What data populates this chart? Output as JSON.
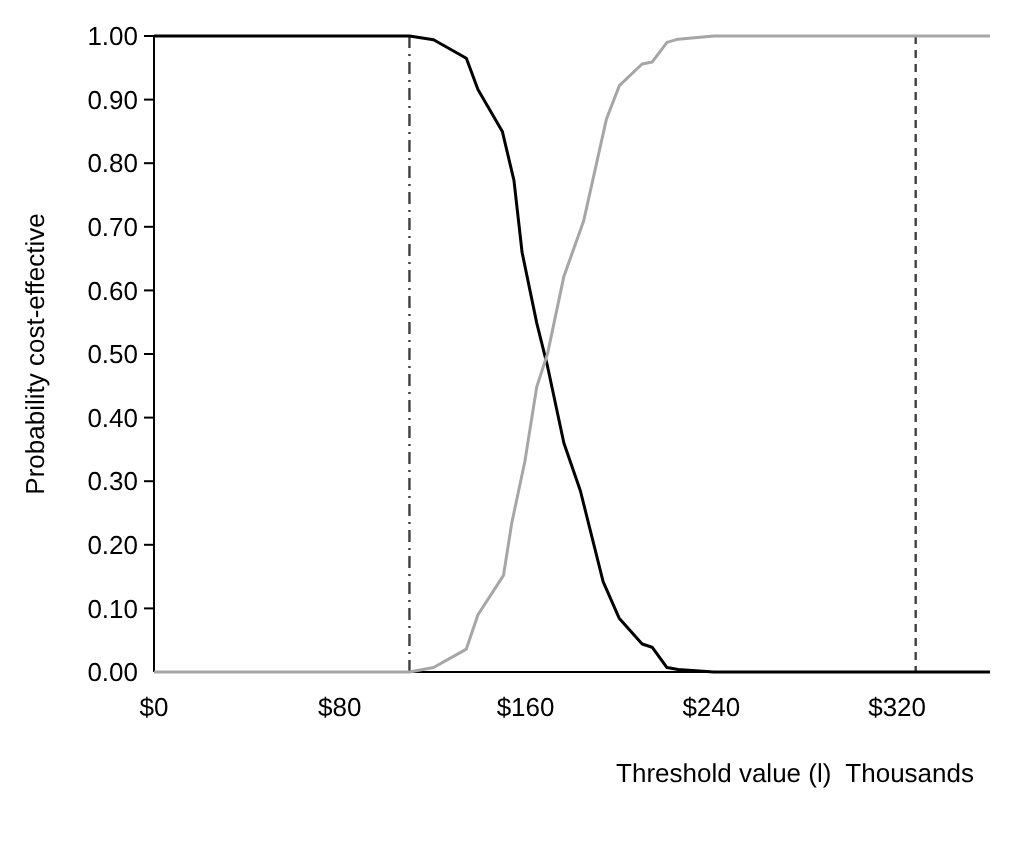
{
  "chart_data": {
    "type": "line",
    "xlabel": "Threshold value (l)  Thousands",
    "ylabel": "Probability cost-effective",
    "xlim": [
      0,
      360
    ],
    "xticks": [
      {
        "value": 0,
        "label": "$0"
      },
      {
        "value": 80,
        "label": "$80"
      },
      {
        "value": 160,
        "label": "$160"
      },
      {
        "value": 240,
        "label": "$240"
      },
      {
        "value": 320,
        "label": "$320"
      }
    ],
    "ylim": [
      0,
      1
    ],
    "yticks": [
      {
        "value": 0,
        "label": "0.00"
      },
      {
        "value": 0.1,
        "label": "0.10"
      },
      {
        "value": 0.2,
        "label": "0.20"
      },
      {
        "value": 0.3,
        "label": "0.30"
      },
      {
        "value": 0.4,
        "label": "0.40"
      },
      {
        "value": 0.5,
        "label": "0.50"
      },
      {
        "value": 0.6,
        "label": "0.60"
      },
      {
        "value": 0.7,
        "label": "0.70"
      },
      {
        "value": 0.8,
        "label": "0.80"
      },
      {
        "value": 0.9,
        "label": "0.90"
      },
      {
        "value": 1,
        "label": "1.00"
      }
    ],
    "grid": false,
    "marker": "none",
    "line_style": "solid",
    "series": [
      {
        "color": "#000000",
        "x": [
          0,
          110,
          120.4,
          134.5,
          139.5,
          150,
          155,
          158.5,
          164.8,
          169.5,
          176.5,
          183.6,
          193.4,
          200.4,
          210.2,
          214.5,
          220.9,
          225.7,
          241,
          360
        ],
        "values": [
          1,
          1,
          0.994,
          0.965,
          0.916,
          0.85,
          0.773,
          0.66,
          0.549,
          0.48,
          0.36,
          0.285,
          0.142,
          0.084,
          0.044,
          0.039,
          0.007,
          0.004,
          0,
          0
        ]
      },
      {
        "color": "#a6a6a6",
        "x": [
          0,
          110,
          120.4,
          134.5,
          139.5,
          150.5,
          154.1,
          159.7,
          164.8,
          169.5,
          176.5,
          185,
          194.8,
          200.4,
          210.2,
          214.5,
          220.9,
          225.7,
          241,
          360
        ],
        "values": [
          0,
          0,
          0.007,
          0.036,
          0.09,
          0.152,
          0.235,
          0.331,
          0.448,
          0.501,
          0.622,
          0.709,
          0.869,
          0.922,
          0.956,
          0.959,
          0.99,
          0.995,
          1,
          1
        ]
      }
    ],
    "ref_lines": [
      {
        "axis": "x",
        "value": 110,
        "color": "#404040",
        "line_style": "dashdot"
      },
      {
        "axis": "x",
        "value": 328,
        "color": "#404040",
        "line_style": "dashed"
      }
    ]
  }
}
